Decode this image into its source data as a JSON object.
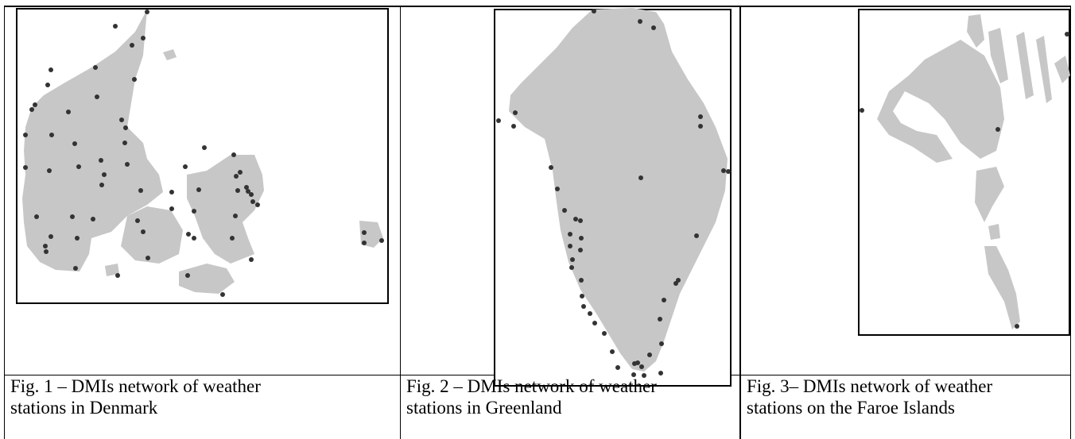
{
  "figures": [
    {
      "region": "Denmark",
      "caption_line1": "Fig. 1 – DMIs network of weather",
      "caption_line2": "stations in Denmark"
    },
    {
      "region": "Greenland",
      "caption_line1": "Fig. 2 – DMIs network of weather",
      "caption_line2": "stations in Greenland"
    },
    {
      "region": "Faroe Islands",
      "caption_line1": "Fig. 3– DMIs network of weather",
      "caption_line2": "stations on the Faroe Islands"
    }
  ],
  "colors": {
    "land": "#c7c7c7",
    "station": "#333333",
    "frame": "#000000"
  }
}
